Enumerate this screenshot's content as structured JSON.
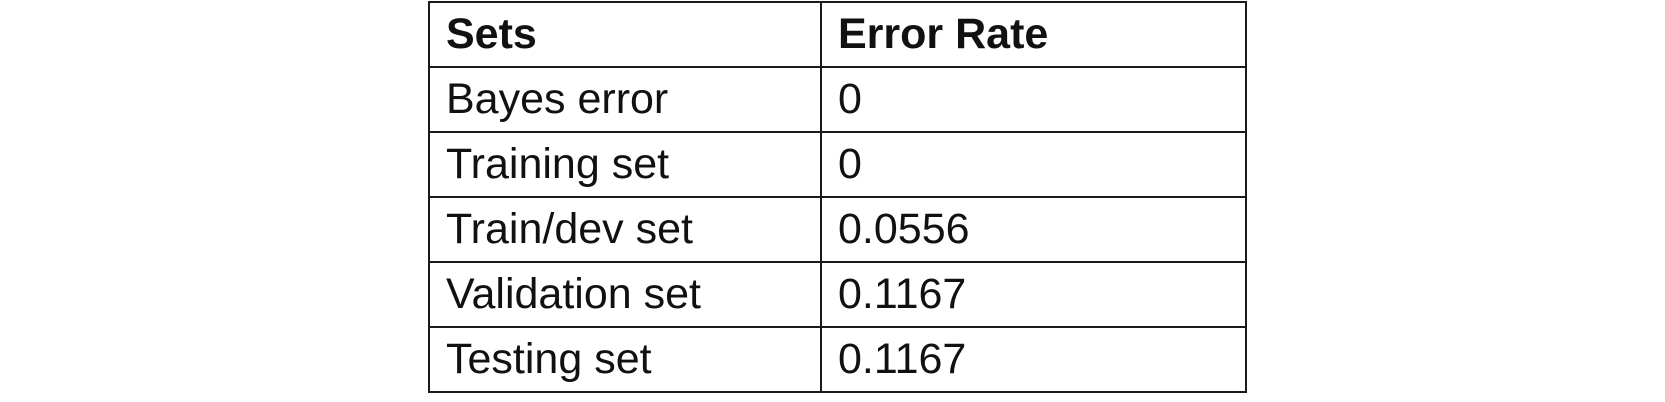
{
  "table": {
    "headers": [
      "Sets",
      "Error Rate"
    ],
    "rows": [
      [
        "Bayes error",
        "0"
      ],
      [
        "Training set",
        "0"
      ],
      [
        "Train/dev set",
        "0.0556"
      ],
      [
        "Validation set",
        "0.1167"
      ],
      [
        "Testing set",
        "0.1167"
      ]
    ]
  }
}
